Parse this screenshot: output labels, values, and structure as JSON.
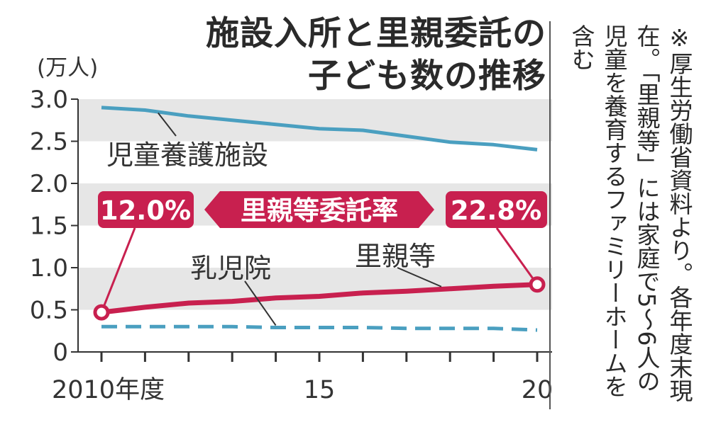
{
  "title_lines": [
    "施設入所と里親委託の",
    "子ども数の推移"
  ],
  "note": "※厚生労働省資料より。各年度末現在。「里親等」には家庭で5～6人の児童を養育するファミリーホームを含む",
  "chart_data": {
    "type": "line",
    "ylabel": "(万人)",
    "ylim": [
      0,
      3.0
    ],
    "yticks": [
      "0",
      "0.5",
      "1.0",
      "1.5",
      "2.0",
      "2.5",
      "3.0"
    ],
    "x": [
      2010,
      2011,
      2012,
      2013,
      2014,
      2015,
      2016,
      2017,
      2018,
      2019,
      2020
    ],
    "xtick_labels": [
      {
        "x": 2010,
        "label": "2010年度"
      },
      {
        "x": 2015,
        "label": "15"
      },
      {
        "x": 2020,
        "label": "20"
      }
    ],
    "series": [
      {
        "name": "児童養護施設",
        "values": [
          2.9,
          2.87,
          2.8,
          2.75,
          2.7,
          2.65,
          2.63,
          2.56,
          2.49,
          2.46,
          2.4
        ],
        "color": "#4a9fc0",
        "style": "solid"
      },
      {
        "name": "里親等",
        "values": [
          0.47,
          0.53,
          0.58,
          0.6,
          0.64,
          0.66,
          0.7,
          0.72,
          0.75,
          0.78,
          0.8
        ],
        "color": "#c8204f",
        "style": "solid"
      },
      {
        "name": "乳児院",
        "values": [
          0.3,
          0.3,
          0.3,
          0.3,
          0.29,
          0.29,
          0.29,
          0.28,
          0.28,
          0.28,
          0.26
        ],
        "color": "#4a9fc0",
        "style": "dashed"
      }
    ],
    "callout": {
      "label": "里親等委託率",
      "start": "12.0%",
      "end": "22.8%"
    }
  }
}
